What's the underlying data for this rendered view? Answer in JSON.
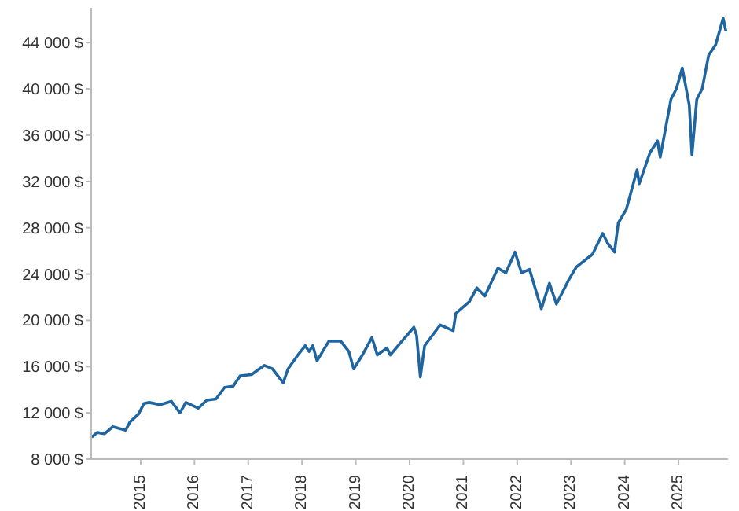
{
  "chart_data": {
    "type": "line",
    "x": [
      2014.09,
      2014.19,
      2014.33,
      2014.48,
      2014.72,
      2014.8,
      2014.96,
      2015.06,
      2015.16,
      2015.36,
      2015.57,
      2015.73,
      2015.84,
      2016.07,
      2016.23,
      2016.4,
      2016.56,
      2016.72,
      2016.85,
      2017.06,
      2017.3,
      2017.45,
      2017.65,
      2017.74,
      2017.94,
      2018.06,
      2018.13,
      2018.2,
      2018.28,
      2018.5,
      2018.72,
      2018.87,
      2018.96,
      2019.11,
      2019.3,
      2019.4,
      2019.58,
      2019.64,
      2019.84,
      2020.08,
      2020.13,
      2020.2,
      2020.28,
      2020.57,
      2020.81,
      2020.86,
      2021.11,
      2021.25,
      2021.4,
      2021.64,
      2021.79,
      2021.96,
      2022.08,
      2022.23,
      2022.32,
      2022.45,
      2022.6,
      2022.73,
      2022.96,
      2023.1,
      2023.4,
      2023.59,
      2023.69,
      2023.81,
      2023.88,
      2024.03,
      2024.23,
      2024.27,
      2024.47,
      2024.61,
      2024.66,
      2024.86,
      2024.96,
      2025.07,
      2025.2,
      2025.25,
      2025.34,
      2025.44,
      2025.56,
      2025.69,
      2025.83,
      2025.88
    ],
    "series": [
      {
        "color": "#1f65a0",
        "values": [
          9900,
          10300,
          10200,
          10800,
          10500,
          11200,
          11900,
          12800,
          12900,
          12700,
          13000,
          12000,
          12900,
          12400,
          13100,
          13200,
          14200,
          14300,
          15200,
          15300,
          16100,
          15800,
          14600,
          15800,
          17100,
          17800,
          17300,
          17800,
          16500,
          18200,
          18200,
          17300,
          15800,
          16900,
          18500,
          17000,
          17600,
          17000,
          18100,
          19400,
          18700,
          15100,
          17800,
          19600,
          19100,
          20600,
          21600,
          22800,
          22100,
          24500,
          24100,
          25900,
          24100,
          24400,
          23000,
          21000,
          23200,
          21400,
          23500,
          24600,
          25700,
          27500,
          26600,
          25900,
          28400,
          29600,
          33000,
          31800,
          34500,
          35500,
          34100,
          39100,
          40000,
          41800,
          38600,
          34300,
          39100,
          40000,
          42900,
          43800,
          46100,
          45000
        ]
      }
    ],
    "xlim": [
      2014.08,
      2025.92
    ],
    "xticks": [
      2015,
      2016,
      2017,
      2018,
      2019,
      2020,
      2021,
      2022,
      2023,
      2024,
      2025
    ],
    "ylim": [
      8000,
      47000
    ],
    "yticks": [
      {
        "value": 8000,
        "label": "8 000 $"
      },
      {
        "value": 12000,
        "label": "12 000 $"
      },
      {
        "value": 16000,
        "label": "16 000 $"
      },
      {
        "value": 20000,
        "label": "20 000 $"
      },
      {
        "value": 24000,
        "label": "24 000 $"
      },
      {
        "value": 28000,
        "label": "28 000 $"
      },
      {
        "value": 32000,
        "label": "32 000 $"
      },
      {
        "value": 36000,
        "label": "36 000 $"
      },
      {
        "value": 40000,
        "label": "40 000 $"
      },
      {
        "value": 44000,
        "label": "44 000 $"
      }
    ],
    "grid": false,
    "legend": false,
    "marker": "none",
    "line_style": "solid"
  }
}
